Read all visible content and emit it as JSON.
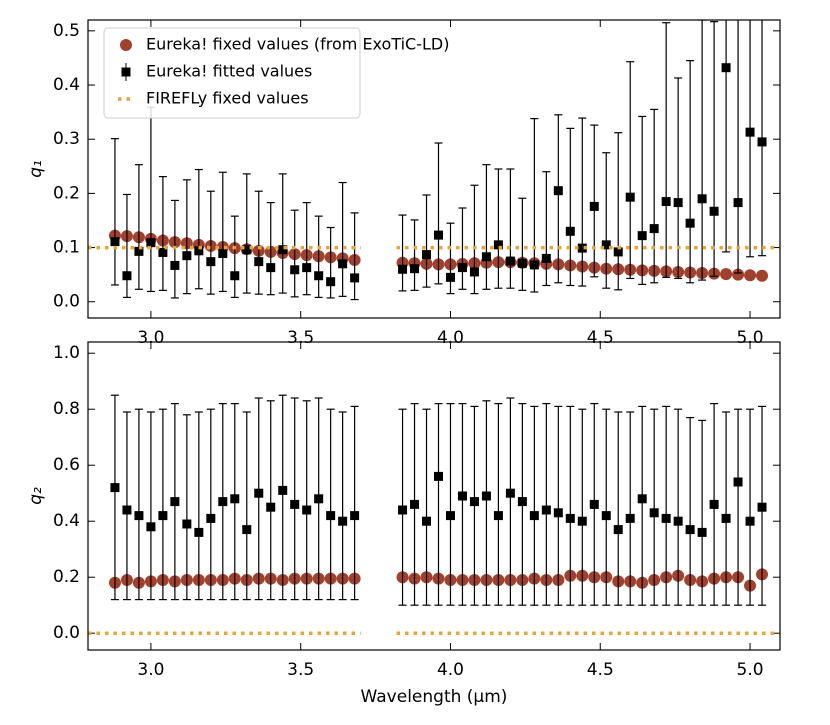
{
  "chart_data": [
    {
      "type": "scatter",
      "ylabel": "q₁",
      "legend": "upper left",
      "x": [
        2.88,
        2.92,
        2.96,
        3.0,
        3.04,
        3.08,
        3.12,
        3.16,
        3.2,
        3.24,
        3.28,
        3.32,
        3.36,
        3.4,
        3.44,
        3.48,
        3.52,
        3.56,
        3.6,
        3.64,
        3.68,
        3.84,
        3.88,
        3.92,
        3.96,
        4.0,
        4.04,
        4.08,
        4.12,
        4.16,
        4.2,
        4.24,
        4.28,
        4.32,
        4.36,
        4.4,
        4.44,
        4.48,
        4.52,
        4.56,
        4.6,
        4.64,
        4.68,
        4.72,
        4.76,
        4.8,
        4.84,
        4.88,
        4.92,
        4.96,
        5.0,
        5.04
      ],
      "xlim": [
        2.79,
        5.1
      ],
      "ylim": [
        -0.03,
        0.52
      ],
      "xticks": [
        {
          "value": 3.0,
          "label": "3.0"
        },
        3.5,
        {
          "value": 4.0,
          "label": "4.0"
        },
        4.5,
        {
          "value": 5.0,
          "label": "5.0"
        }
      ],
      "yticks": [
        {
          "value": 0,
          "label": "0.0"
        },
        0.1,
        0.2,
        0.3,
        0.4,
        0.5
      ],
      "series": [
        {
          "name": "Eureka! fixed values (from ExoTiC-LD)",
          "color": "#a0412d",
          "marker": "circle",
          "values": [
            0.122,
            0.121,
            0.119,
            0.116,
            0.113,
            0.11,
            0.108,
            0.105,
            0.103,
            0.101,
            0.099,
            0.097,
            0.094,
            0.092,
            0.09,
            0.088,
            0.086,
            0.084,
            0.082,
            0.08,
            0.077,
            0.072,
            0.071,
            0.07,
            0.069,
            0.069,
            0.07,
            0.071,
            0.072,
            0.073,
            0.073,
            0.072,
            0.071,
            0.07,
            0.069,
            0.067,
            0.065,
            0.063,
            0.061,
            0.06,
            0.059,
            0.058,
            0.057,
            0.056,
            0.055,
            0.054,
            0.053,
            0.052,
            0.051,
            0.05,
            0.049,
            0.048
          ]
        },
        {
          "name": "Eureka! fitted values",
          "color": "#000000",
          "marker": "square",
          "values": [
            0.111,
            0.048,
            0.093,
            0.109,
            0.091,
            0.067,
            0.085,
            0.094,
            0.074,
            0.089,
            0.048,
            0.096,
            0.074,
            0.063,
            0.096,
            0.059,
            0.063,
            0.048,
            0.037,
            0.07,
            0.044,
            0.06,
            0.061,
            0.087,
            0.123,
            0.045,
            0.063,
            0.055,
            0.083,
            0.105,
            0.075,
            0.071,
            0.068,
            0.08,
            0.205,
            0.13,
            0.099,
            0.176,
            0.105,
            0.092,
            0.193,
            0.122,
            0.135,
            0.185,
            0.183,
            0.145,
            0.19,
            0.167,
            0.432,
            0.183,
            0.313,
            0.295
          ],
          "errors_low": [
            0.08,
            0.04,
            0.07,
            0.09,
            0.07,
            0.06,
            0.07,
            0.07,
            0.06,
            0.07,
            0.04,
            0.08,
            0.06,
            0.05,
            0.08,
            0.05,
            0.05,
            0.04,
            0.03,
            0.06,
            0.04,
            0.04,
            0.04,
            0.06,
            0.09,
            0.03,
            0.04,
            0.04,
            0.06,
            0.08,
            0.05,
            0.05,
            0.05,
            0.05,
            0.17,
            0.1,
            0.07,
            0.13,
            0.08,
            0.07,
            0.15,
            0.09,
            0.1,
            0.14,
            0.14,
            0.11,
            0.15,
            0.12,
            0.34,
            0.13,
            0.23,
            0.21
          ],
          "errors_high": [
            0.19,
            0.15,
            0.16,
            0.25,
            0.14,
            0.12,
            0.14,
            0.15,
            0.13,
            0.15,
            0.11,
            0.14,
            0.13,
            0.12,
            0.14,
            0.11,
            0.12,
            0.11,
            0.1,
            0.15,
            0.12,
            0.1,
            0.09,
            0.11,
            0.17,
            0.1,
            0.11,
            0.16,
            0.17,
            0.14,
            0.17,
            0.12,
            0.27,
            0.16,
            0.14,
            0.19,
            0.24,
            0.15,
            0.17,
            0.22,
            0.25,
            0.22,
            0.22,
            0.33,
            0.23,
            0.3,
            0.33,
            0.35,
            0.09,
            0.34,
            0.21,
            0.23
          ]
        },
        {
          "name": "FIREFLy fixed values",
          "color": "#e8a43a",
          "marker": "dotted-line",
          "x": [
            2.79,
            3.7,
            3.76,
            3.82,
            5.11
          ],
          "values": [
            0.1,
            0.1,
            null,
            0.1,
            0.1
          ]
        }
      ]
    },
    {
      "type": "scatter",
      "ylabel": "q₂",
      "xlabel": "Wavelength (μm)",
      "x": [
        2.88,
        2.92,
        2.96,
        3.0,
        3.04,
        3.08,
        3.12,
        3.16,
        3.2,
        3.24,
        3.28,
        3.32,
        3.36,
        3.4,
        3.44,
        3.48,
        3.52,
        3.56,
        3.6,
        3.64,
        3.68,
        3.84,
        3.88,
        3.92,
        3.96,
        4.0,
        4.04,
        4.08,
        4.12,
        4.16,
        4.2,
        4.24,
        4.28,
        4.32,
        4.36,
        4.4,
        4.44,
        4.48,
        4.52,
        4.56,
        4.6,
        4.64,
        4.68,
        4.72,
        4.76,
        4.8,
        4.84,
        4.88,
        4.92,
        4.96,
        5.0,
        5.04
      ],
      "xlim": [
        2.79,
        5.1
      ],
      "ylim": [
        -0.06,
        1.04
      ],
      "xticks": [
        {
          "value": 3.0,
          "label": "3.0"
        },
        3.5,
        {
          "value": 4.0,
          "label": "4.0"
        },
        4.5,
        {
          "value": 5.0,
          "label": "5.0"
        }
      ],
      "yticks": [
        {
          "value": 0,
          "label": "0.0"
        },
        0.2,
        0.4,
        0.6,
        0.8,
        {
          "value": 1.0,
          "label": "1.0"
        }
      ],
      "series": [
        {
          "color": "#a0412d",
          "marker": "circle",
          "values": [
            0.18,
            0.19,
            0.18,
            0.185,
            0.19,
            0.185,
            0.19,
            0.19,
            0.19,
            0.19,
            0.195,
            0.19,
            0.195,
            0.195,
            0.19,
            0.195,
            0.195,
            0.195,
            0.195,
            0.195,
            0.195,
            0.2,
            0.195,
            0.2,
            0.195,
            0.19,
            0.19,
            0.19,
            0.19,
            0.19,
            0.19,
            0.19,
            0.195,
            0.19,
            0.19,
            0.205,
            0.205,
            0.2,
            0.2,
            0.185,
            0.185,
            0.18,
            0.19,
            0.2,
            0.205,
            0.19,
            0.185,
            0.195,
            0.2,
            0.2,
            0.17,
            0.21
          ]
        },
        {
          "color": "#000000",
          "marker": "square",
          "values": [
            0.52,
            0.44,
            0.42,
            0.38,
            0.42,
            0.47,
            0.39,
            0.36,
            0.41,
            0.47,
            0.48,
            0.37,
            0.5,
            0.45,
            0.51,
            0.46,
            0.44,
            0.48,
            0.42,
            0.4,
            0.42,
            0.44,
            0.46,
            0.4,
            0.56,
            0.42,
            0.49,
            0.47,
            0.49,
            0.42,
            0.5,
            0.47,
            0.42,
            0.44,
            0.43,
            0.41,
            0.4,
            0.46,
            0.42,
            0.37,
            0.41,
            0.48,
            0.43,
            0.41,
            0.4,
            0.37,
            0.36,
            0.46,
            0.41,
            0.54,
            0.4,
            0.45
          ],
          "errors_low": [
            0.4,
            0.32,
            0.3,
            0.26,
            0.3,
            0.35,
            0.27,
            0.24,
            0.29,
            0.35,
            0.36,
            0.25,
            0.38,
            0.33,
            0.39,
            0.34,
            0.32,
            0.36,
            0.3,
            0.28,
            0.3,
            0.34,
            0.36,
            0.3,
            0.46,
            0.32,
            0.39,
            0.37,
            0.39,
            0.32,
            0.4,
            0.37,
            0.32,
            0.34,
            0.33,
            0.31,
            0.3,
            0.36,
            0.32,
            0.27,
            0.31,
            0.38,
            0.33,
            0.31,
            0.3,
            0.27,
            0.26,
            0.36,
            0.31,
            0.44,
            0.3,
            0.35
          ],
          "errors_high": [
            0.33,
            0.35,
            0.38,
            0.41,
            0.38,
            0.35,
            0.39,
            0.43,
            0.39,
            0.35,
            0.34,
            0.42,
            0.34,
            0.38,
            0.34,
            0.38,
            0.39,
            0.36,
            0.38,
            0.39,
            0.39,
            0.36,
            0.36,
            0.4,
            0.26,
            0.4,
            0.33,
            0.34,
            0.34,
            0.4,
            0.34,
            0.35,
            0.39,
            0.38,
            0.38,
            0.4,
            0.4,
            0.36,
            0.38,
            0.42,
            0.38,
            0.33,
            0.37,
            0.4,
            0.4,
            0.4,
            0.4,
            0.36,
            0.38,
            0.26,
            0.4,
            0.36
          ]
        },
        {
          "color": "#e8a43a",
          "marker": "dotted-line",
          "x": [
            2.79,
            3.7,
            3.76,
            3.82,
            5.11
          ],
          "values": [
            0,
            0,
            null,
            0,
            0
          ]
        }
      ]
    }
  ]
}
